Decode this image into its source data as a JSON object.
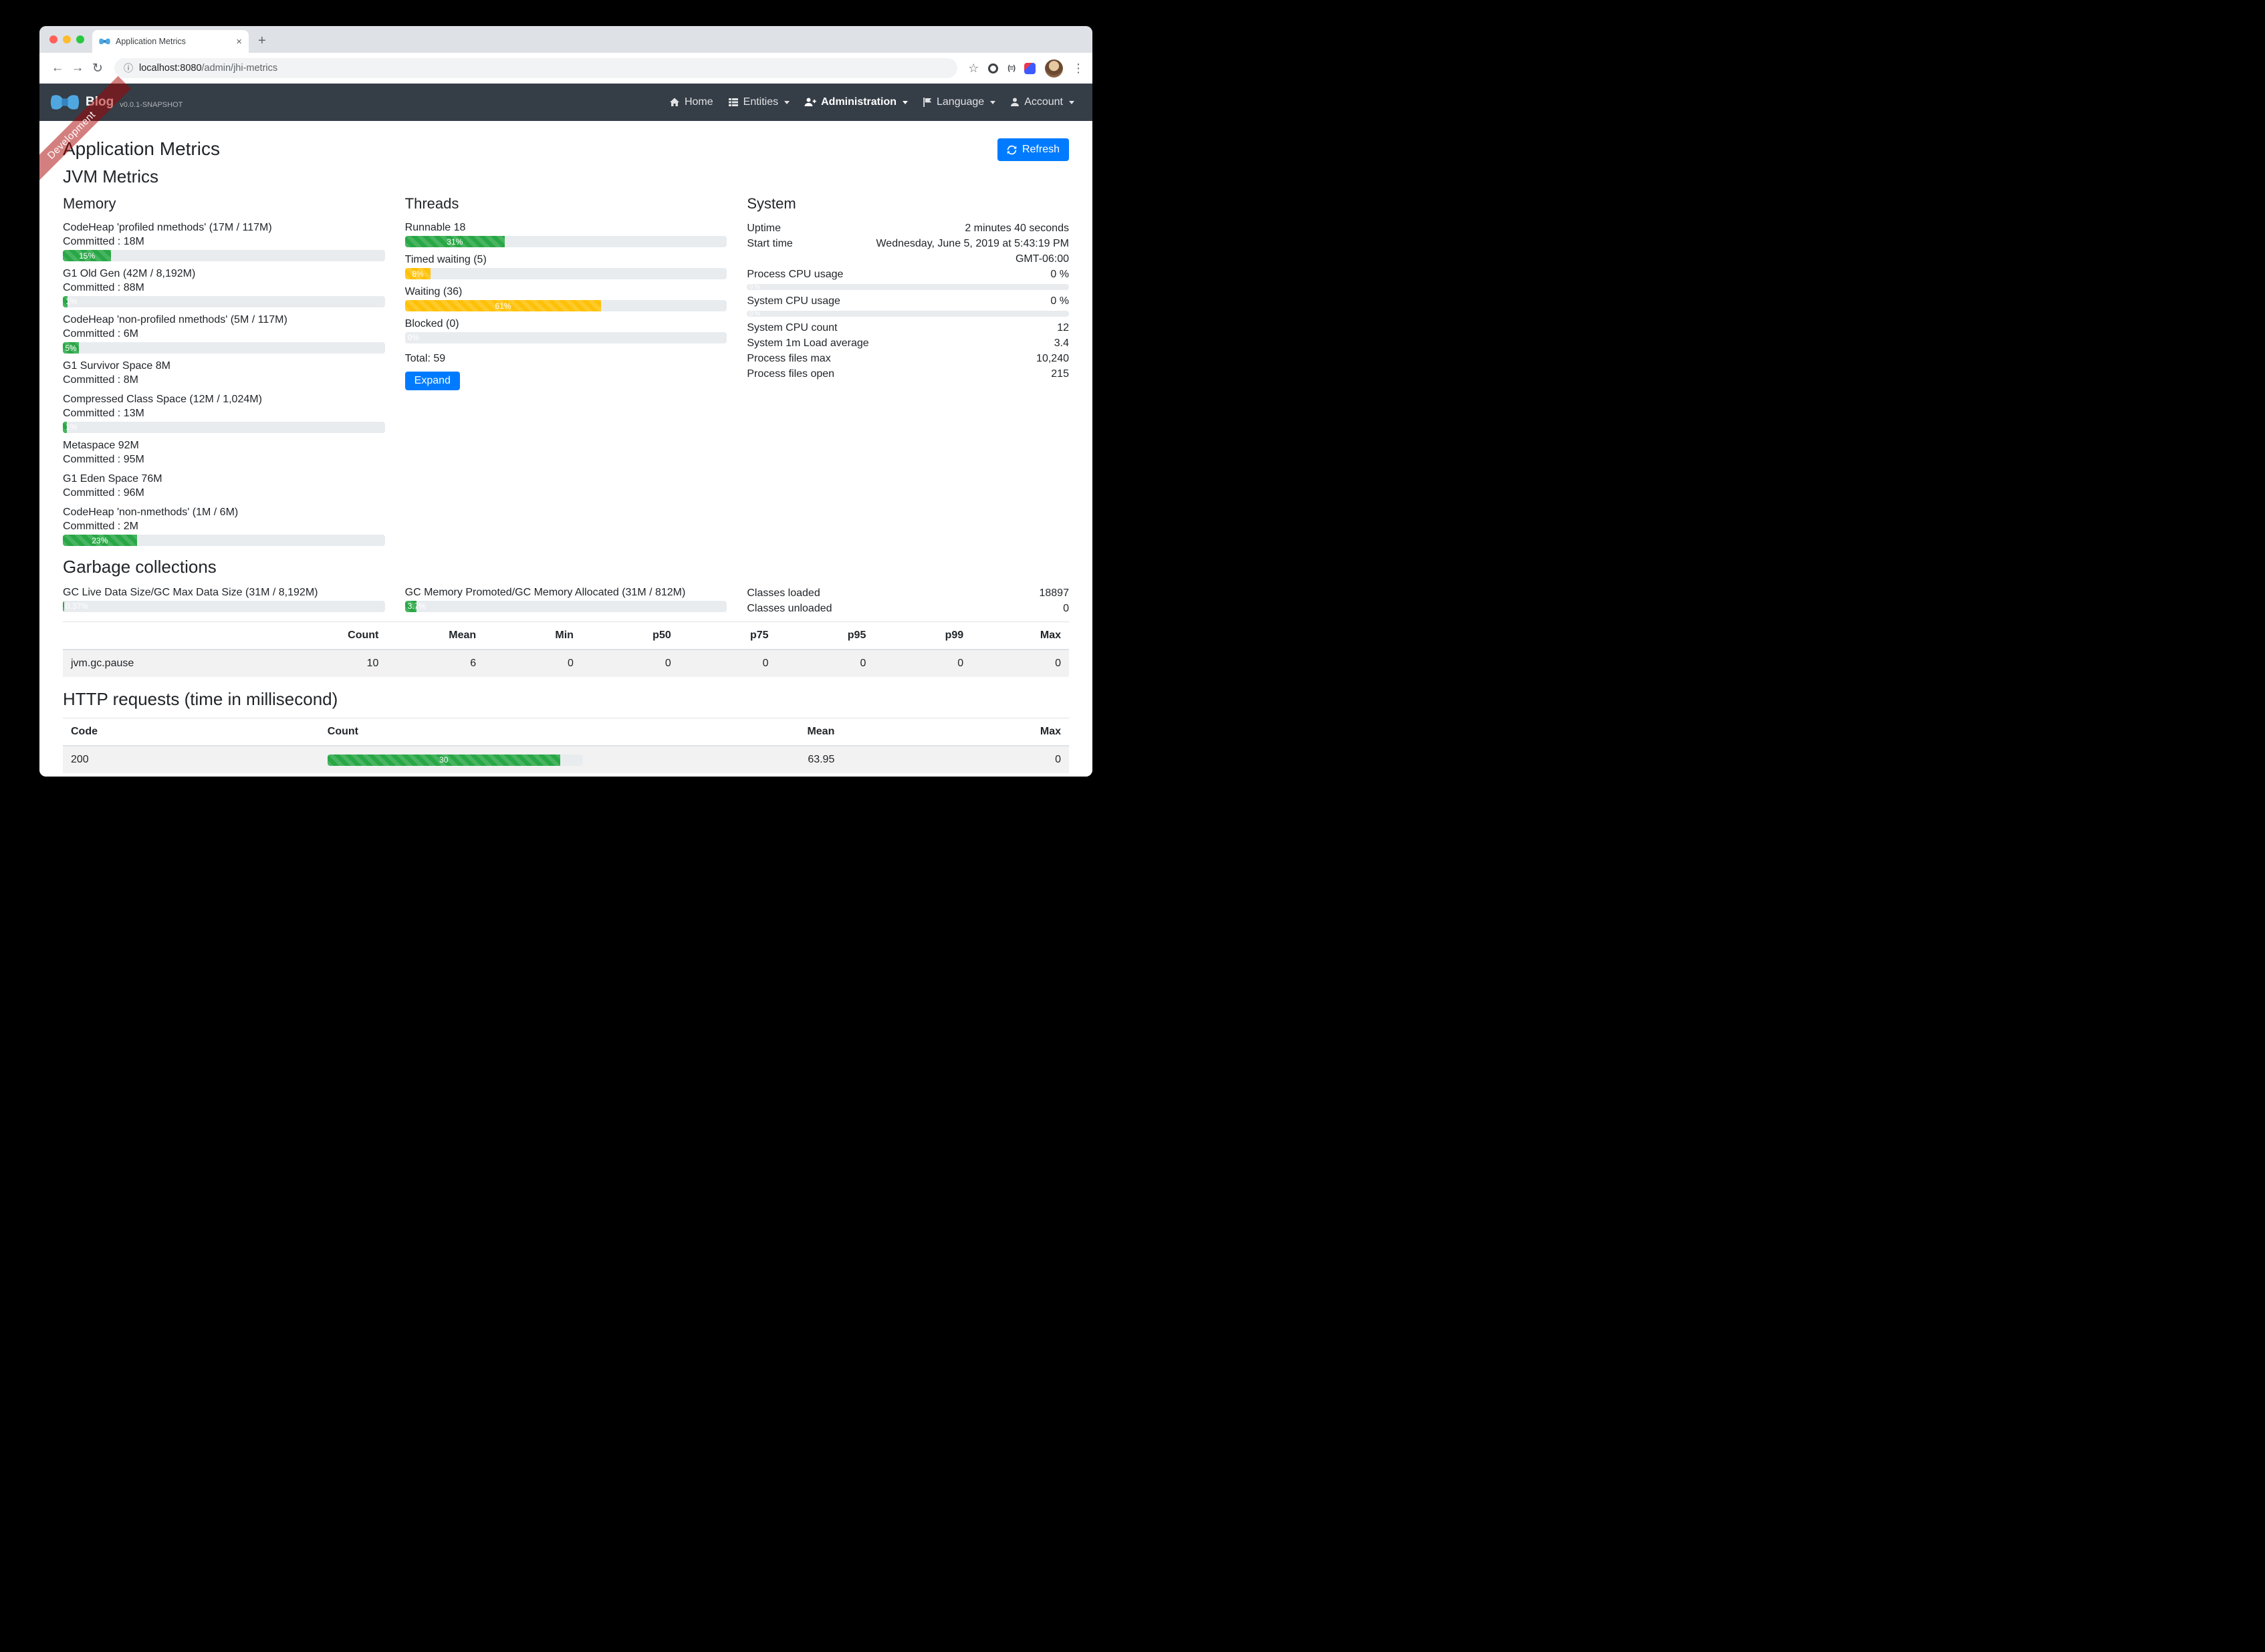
{
  "chrome": {
    "tab_title": "Application Metrics",
    "url_host": "localhost:8080",
    "url_path": "/admin/jhi-metrics",
    "icons": {
      "back": "←",
      "forward": "→",
      "reload": "↻",
      "info": "ⓘ",
      "bookmark": "☆",
      "menu": "⋮",
      "close_tab": "×",
      "new_tab": "+",
      "extension_parens": "(≡)"
    }
  },
  "navbar": {
    "brand": "Blog",
    "version": "v0.0.1-SNAPSHOT",
    "ribbon": "Development",
    "home": "Home",
    "entities": "Entities",
    "administration": "Administration",
    "language": "Language",
    "account": "Account"
  },
  "page": {
    "title": "Application Metrics",
    "refresh_label": "Refresh",
    "jvm_heading": "JVM Metrics",
    "memory": {
      "heading": "Memory",
      "items": [
        {
          "label": "CodeHeap 'profiled nmethods' (17M / 117M)",
          "committed": "Committed : 18M",
          "percent": 15,
          "bar_label": "15%"
        },
        {
          "label": "G1 Old Gen (42M / 8,192M)",
          "committed": "Committed : 88M",
          "percent": 1.4,
          "bar_label": "1%"
        },
        {
          "label": "CodeHeap 'non-profiled nmethods' (5M / 117M)",
          "committed": "Committed : 6M",
          "percent": 5,
          "bar_label": "5%"
        },
        {
          "label": "G1 Survivor Space 8M",
          "committed": "Committed : 8M"
        },
        {
          "label": "Compressed Class Space (12M / 1,024M)",
          "committed": "Committed : 13M",
          "percent": 1.3,
          "bar_label": "1%"
        },
        {
          "label": "Metaspace 92M",
          "committed": "Committed : 95M"
        },
        {
          "label": "G1 Eden Space 76M",
          "committed": "Committed : 96M"
        },
        {
          "label": "CodeHeap 'non-nmethods' (1M / 6M)",
          "committed": "Committed : 2M",
          "percent": 23,
          "bar_label": "23%"
        }
      ]
    },
    "threads": {
      "heading": "Threads",
      "items": [
        {
          "label": "Runnable 18",
          "percent": 31,
          "bar_label": "31%"
        },
        {
          "label": "Timed waiting (5)",
          "percent": 8,
          "bar_label": "8%"
        },
        {
          "label": "Waiting (36)",
          "percent": 61,
          "bar_label": "61%"
        },
        {
          "label": "Blocked (0)",
          "percent": 0,
          "bar_label": "0%"
        }
      ],
      "total": "Total: 59",
      "expand_label": "Expand"
    },
    "system": {
      "heading": "System",
      "rows": [
        {
          "label": "Uptime",
          "value": "2 minutes 40 seconds"
        },
        {
          "label": "Start time",
          "value": "Wednesday, June 5, 2019 at 5:43:19 PM GMT-06:00"
        },
        {
          "label": "Process CPU usage",
          "value": "0 %",
          "percent": 0,
          "bar_label": "0 %"
        },
        {
          "label": "System CPU usage",
          "value": "0 %",
          "percent": 0,
          "bar_label": "0 %"
        },
        {
          "label": "System CPU count",
          "value": "12"
        },
        {
          "label": "System 1m Load average",
          "value": "3.4"
        },
        {
          "label": "Process files max",
          "value": "10,240"
        },
        {
          "label": "Process files open",
          "value": "215"
        }
      ]
    },
    "gc": {
      "heading": "Garbage collections",
      "live": {
        "label": "GC Live Data Size/GC Max Data Size (31M / 8,192M)",
        "percent": 0.37,
        "bar_label": "0.37%"
      },
      "promoted": {
        "label": "GC Memory Promoted/GC Memory Allocated (31M / 812M)",
        "percent": 3.7,
        "bar_label": "3.7%"
      },
      "classes_loaded_label": "Classes loaded",
      "classes_loaded_value": "18897",
      "classes_unloaded_label": "Classes unloaded",
      "classes_unloaded_value": "0",
      "table": {
        "headers": [
          "Count",
          "Mean",
          "Min",
          "p50",
          "p75",
          "p95",
          "p99",
          "Max"
        ],
        "row_name": "jvm.gc.pause",
        "row_values": [
          "10",
          "6",
          "0",
          "0",
          "0",
          "0",
          "0",
          "0"
        ]
      }
    },
    "http": {
      "heading": "HTTP requests (time in millisecond)",
      "headers": {
        "code": "Code",
        "count": "Count",
        "mean": "Mean",
        "max": "Max"
      },
      "rows": [
        {
          "code": "200",
          "count": "30",
          "count_percent": 91,
          "mean": "63.95",
          "max": "0"
        }
      ]
    }
  }
}
